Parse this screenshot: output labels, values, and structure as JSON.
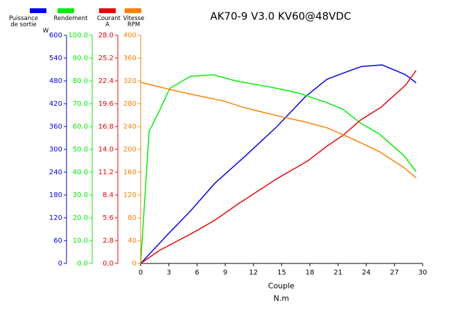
{
  "chart_data": {
    "type": "line",
    "title": "AK70-9 V3.0 KV60@48VDC",
    "x_label": "Couple",
    "x_unit": "N.m",
    "xlim": [
      0,
      30
    ],
    "xticks": [
      0,
      3,
      6,
      9,
      12,
      15,
      18,
      21,
      24,
      27,
      30
    ],
    "grid": false,
    "series": [
      {
        "name": "Puissance de sortie",
        "unit": "W",
        "color": "#0000ee",
        "x": [
          0,
          3.1,
          5.3,
          7.9,
          11.2,
          14.5,
          17.5,
          19.8,
          21.7,
          23.5,
          25.7,
          28.2,
          29.3
        ],
        "values": [
          0,
          82,
          138,
          211,
          284,
          360,
          438,
          484,
          502,
          518,
          522,
          496,
          475
        ],
        "ylim": [
          0,
          600
        ],
        "yticks": [
          0,
          60,
          120,
          180,
          240,
          300,
          360,
          420,
          480,
          540,
          600
        ]
      },
      {
        "name": "Rendement",
        "color": "#00ee00",
        "x": [
          0,
          0.9,
          2.0,
          3.1,
          5.3,
          7.7,
          10.1,
          13.8,
          16.7,
          19.7,
          21.5,
          23.4,
          25.4,
          28.0,
          29.3
        ],
        "values": [
          0,
          57.9,
          67,
          76.7,
          82,
          82.7,
          80,
          77.3,
          74.8,
          70.6,
          67.6,
          61.5,
          56.7,
          47.3,
          40.3
        ],
        "ylim": [
          0,
          100
        ],
        "yticks": [
          {
            "value": 0,
            "label": "0.0"
          },
          {
            "value": 10,
            "label": "10.0"
          },
          {
            "value": 20,
            "label": "20.0"
          },
          {
            "value": 30,
            "label": "30.0"
          },
          {
            "value": 40,
            "label": "40.0"
          },
          {
            "value": 50,
            "label": "50.0"
          },
          {
            "value": 60,
            "label": "60.0"
          },
          {
            "value": 70,
            "label": "70.0"
          },
          {
            "value": 80,
            "label": "80.0"
          },
          {
            "value": 90,
            "label": "90.0"
          },
          {
            "value": 100,
            "label": "100.0"
          }
        ]
      },
      {
        "name": "Courant",
        "unit": "A",
        "color": "#ee0000",
        "x": [
          0,
          2.0,
          5.3,
          7.9,
          10.5,
          14.5,
          17.8,
          19.7,
          21.5,
          23.4,
          25.6,
          28.2,
          29.3
        ],
        "values": [
          0,
          1.6,
          3.6,
          5.3,
          7.4,
          10.4,
          12.6,
          14.3,
          15.7,
          17.6,
          19.2,
          21.9,
          23.7
        ],
        "ylim": [
          0,
          28
        ],
        "yticks": [
          {
            "value": 0,
            "label": "0.0"
          },
          2.8,
          5.6,
          8.4,
          11.2,
          {
            "value": 14,
            "label": "14.0"
          },
          16.8,
          19.6,
          22.4,
          25.2,
          {
            "value": 28,
            "label": "28.0"
          }
        ]
      },
      {
        "name": "Vitesse",
        "unit": "RPM",
        "color": "#ff7f00",
        "x": [
          0,
          3.1,
          6.4,
          9.0,
          10.8,
          14.5,
          17.5,
          19.8,
          21.9,
          23.5,
          25.4,
          28.0,
          29.3
        ],
        "values": [
          317.6,
          305,
          293,
          284,
          274,
          259,
          248,
          238,
          223,
          211,
          196,
          168,
          150
        ],
        "ylim": [
          0,
          400
        ],
        "yticks": [
          0,
          40,
          80,
          120,
          160,
          200,
          240,
          280,
          320,
          360,
          400
        ]
      }
    ]
  }
}
